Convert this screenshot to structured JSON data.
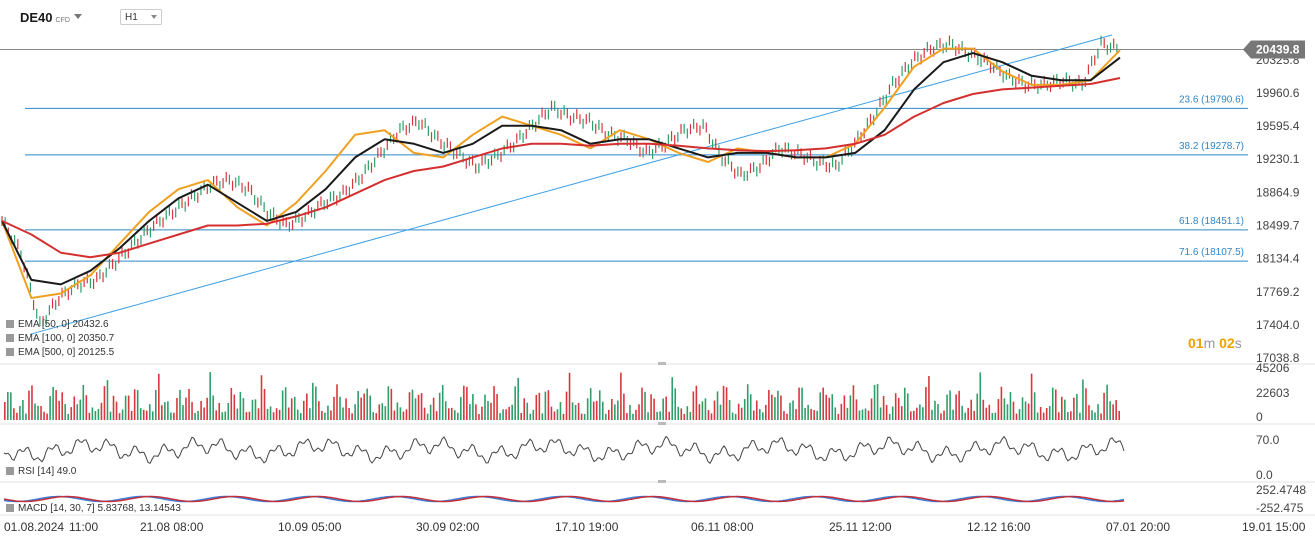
{
  "header": {
    "symbol": "DE40",
    "symbol_type": "CFD",
    "timeframe": "H1"
  },
  "timer": {
    "minutes": "01",
    "m_unit": "m",
    "seconds": "02",
    "s_unit": "s"
  },
  "indicators_legend": [
    {
      "label": "EMA [50, 0] 20432.6",
      "color": "#f0a020"
    },
    {
      "label": "EMA [100, 0] 20350.7",
      "color": "#1a1a1a"
    },
    {
      "label": "EMA [500, 0] 20125.5",
      "color": "#d43030"
    }
  ],
  "rsi_label": "RSI [14] 49.0",
  "macd_label": "MACD [14, 30, 7] 5.83768, 13.14543",
  "colors": {
    "ema50": "#f0a020",
    "ema100": "#1a1a1a",
    "ema500": "#d43030",
    "fib": "#2f86c8",
    "trendline": "#3da0e6",
    "bull": "#2e9e6a",
    "bear": "#d9363e",
    "price_tag_bg": "#777777"
  },
  "chart_data": {
    "type": "line",
    "title": "DE40",
    "current_price": "20439.8",
    "y_ticks": [
      "20325.8",
      "19960.6",
      "19595.4",
      "19230.1",
      "18864.9",
      "18499.7",
      "18134.4",
      "17769.2",
      "17404.0",
      "17038.8"
    ],
    "ylim": [
      17038.8,
      20600
    ],
    "x_ticks": [
      "01.08.2024",
      "11:00",
      "21.08 08:00",
      "10.09 05:00",
      "30.09 02:00",
      "17.10 19:00",
      "06.11 08:00",
      "25.11 12:00",
      "12.12 16:00",
      "07.01",
      "20:00",
      "19.01 15:00"
    ],
    "fibonacci_levels": [
      {
        "label": "23.6 (19790.6)",
        "value": 19790.6
      },
      {
        "label": "38.2 (19278.7)",
        "value": 19278.7
      },
      {
        "label": "61.8 (18451.1)",
        "value": 18451.1
      },
      {
        "label": "71.6 (18107.5)",
        "value": 18107.5
      }
    ],
    "resistance_line": 20439.8,
    "trendline": {
      "from": 17300,
      "to": 20600
    },
    "price_path": [
      [
        0,
        18550
      ],
      [
        3,
        18200
      ],
      [
        6,
        17400
      ],
      [
        9,
        17700
      ],
      [
        12,
        17850
      ],
      [
        15,
        17900
      ],
      [
        18,
        18100
      ],
      [
        21,
        18300
      ],
      [
        24,
        18500
      ],
      [
        27,
        18650
      ],
      [
        30,
        18800
      ],
      [
        33,
        18950
      ],
      [
        36,
        19000
      ],
      [
        39,
        18900
      ],
      [
        42,
        18650
      ],
      [
        45,
        18500
      ],
      [
        48,
        18600
      ],
      [
        51,
        18750
      ],
      [
        54,
        18850
      ],
      [
        57,
        19050
      ],
      [
        60,
        19300
      ],
      [
        63,
        19550
      ],
      [
        66,
        19650
      ],
      [
        69,
        19450
      ],
      [
        72,
        19300
      ],
      [
        75,
        19150
      ],
      [
        78,
        19250
      ],
      [
        81,
        19400
      ],
      [
        84,
        19600
      ],
      [
        87,
        19800
      ],
      [
        90,
        19700
      ],
      [
        93,
        19650
      ],
      [
        96,
        19500
      ],
      [
        99,
        19450
      ],
      [
        102,
        19300
      ],
      [
        105,
        19400
      ],
      [
        108,
        19550
      ],
      [
        111,
        19600
      ],
      [
        114,
        19250
      ],
      [
        117,
        19050
      ],
      [
        120,
        19150
      ],
      [
        123,
        19350
      ],
      [
        126,
        19300
      ],
      [
        129,
        19200
      ],
      [
        132,
        19150
      ],
      [
        135,
        19400
      ],
      [
        138,
        19700
      ],
      [
        141,
        20050
      ],
      [
        144,
        20300
      ],
      [
        147,
        20450
      ],
      [
        150,
        20500
      ],
      [
        153,
        20400
      ],
      [
        156,
        20300
      ],
      [
        159,
        20150
      ],
      [
        162,
        20050
      ],
      [
        165,
        20050
      ],
      [
        168,
        20100
      ],
      [
        171,
        20050
      ],
      [
        174,
        20500
      ],
      [
        177,
        20440
      ]
    ],
    "series": [
      {
        "name": "EMA [50, 0] 20432.6",
        "values": [
          18550,
          17700,
          17750,
          17950,
          18300,
          18650,
          18900,
          19000,
          18700,
          18500,
          18750,
          19100,
          19500,
          19550,
          19300,
          19250,
          19500,
          19700,
          19600,
          19500,
          19350,
          19550,
          19450,
          19300,
          19200,
          19350,
          19300,
          19250,
          19250,
          19400,
          19800,
          20250,
          20450,
          20450,
          20200,
          20050,
          20050,
          20100,
          20432.6
        ]
      },
      {
        "name": "EMA [100, 0] 20350.7",
        "values": [
          18550,
          17900,
          17850,
          18000,
          18250,
          18550,
          18800,
          18950,
          18750,
          18550,
          18650,
          18900,
          19250,
          19450,
          19400,
          19300,
          19400,
          19600,
          19600,
          19550,
          19400,
          19450,
          19450,
          19350,
          19250,
          19300,
          19300,
          19250,
          19250,
          19300,
          19550,
          20000,
          20300,
          20400,
          20300,
          20150,
          20100,
          20100,
          20350.7
        ]
      },
      {
        "name": "EMA [500, 0] 20125.5",
        "values": [
          18550,
          18400,
          18200,
          18150,
          18200,
          18300,
          18400,
          18500,
          18500,
          18520,
          18600,
          18700,
          18850,
          19000,
          19100,
          19150,
          19250,
          19350,
          19400,
          19400,
          19380,
          19400,
          19400,
          19380,
          19350,
          19330,
          19320,
          19330,
          19350,
          19400,
          19500,
          19700,
          19850,
          19950,
          20000,
          20020,
          20040,
          20060,
          20125.5
        ]
      }
    ],
    "volume": {
      "ticks": [
        "45206",
        "22603",
        "0"
      ],
      "max": 45206
    },
    "rsi": {
      "ticks": [
        "70.0",
        "0.0"
      ],
      "value": 49.0
    },
    "macd": {
      "ticks": [
        "252.4748",
        "-252.475"
      ]
    }
  }
}
